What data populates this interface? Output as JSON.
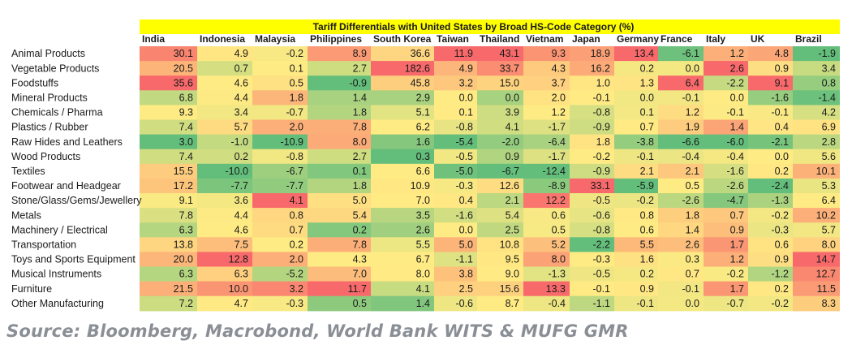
{
  "chart_data": {
    "type": "heatmap",
    "title": "Tariff Differentials with United States by Broad HS-Code Category (%)",
    "columns": [
      "India",
      "Indonesia",
      "Malaysia",
      "Philippines",
      "South Korea",
      "Taiwan",
      "Thailand",
      "Vietnam",
      "Japan",
      "Germany",
      "France",
      "Italy",
      "UK",
      "Brazil"
    ],
    "rows": [
      {
        "label": "Animal Products",
        "values": [
          30.1,
          4.9,
          -0.2,
          8.9,
          36.6,
          11.9,
          43.1,
          9.3,
          18.9,
          13.4,
          -6.1,
          1.2,
          4.8,
          -1.9
        ]
      },
      {
        "label": "Vegetable Products",
        "values": [
          20.5,
          0.7,
          0.1,
          2.7,
          182.6,
          4.9,
          33.7,
          4.3,
          16.2,
          0.2,
          0.0,
          2.6,
          0.9,
          3.4
        ]
      },
      {
        "label": "Foodstuffs",
        "values": [
          35.6,
          4.6,
          0.5,
          -0.9,
          45.8,
          3.2,
          15.0,
          3.7,
          1.0,
          1.3,
          6.4,
          -2.2,
          9.1,
          0.8
        ]
      },
      {
        "label": "Mineral Products",
        "values": [
          6.8,
          4.4,
          1.8,
          1.4,
          2.9,
          0.0,
          0.0,
          2.0,
          -0.1,
          0.0,
          -0.1,
          0.0,
          -1.6,
          -1.4
        ]
      },
      {
        "label": "Chemicals / Pharma",
        "values": [
          9.3,
          3.4,
          -0.7,
          1.8,
          5.1,
          0.1,
          3.9,
          1.2,
          -0.8,
          0.1,
          1.2,
          -0.1,
          -0.1,
          4.2
        ]
      },
      {
        "label": "Plastics / Rubber",
        "values": [
          7.4,
          5.7,
          2.0,
          7.8,
          6.2,
          -0.8,
          4.1,
          -1.7,
          -0.9,
          0.7,
          1.9,
          1.4,
          0.4,
          6.9
        ]
      },
      {
        "label": "Raw Hides and Leathers",
        "values": [
          3.0,
          -1.0,
          -10.9,
          8.0,
          1.6,
          -5.4,
          -2.0,
          -6.4,
          1.8,
          -3.8,
          -6.6,
          -6.0,
          -2.1,
          2.8
        ]
      },
      {
        "label": "Wood Products",
        "values": [
          7.4,
          0.2,
          -0.8,
          2.7,
          0.3,
          -0.5,
          0.9,
          -1.7,
          -0.2,
          -0.1,
          -0.4,
          -0.4,
          0.0,
          5.6
        ]
      },
      {
        "label": "Textiles",
        "values": [
          15.5,
          -10.0,
          -6.7,
          0.1,
          6.6,
          -5.0,
          -6.7,
          -12.4,
          -0.9,
          2.1,
          2.1,
          -1.6,
          0.2,
          10.1
        ]
      },
      {
        "label": "Footwear and Headgear",
        "values": [
          17.2,
          -7.7,
          -7.7,
          1.8,
          10.9,
          -0.3,
          12.6,
          -8.9,
          33.1,
          -5.9,
          0.5,
          -2.6,
          -2.4,
          5.3
        ]
      },
      {
        "label": "Stone/Glass/Gems/Jewellery",
        "values": [
          9.1,
          3.6,
          4.1,
          5.0,
          7.0,
          0.4,
          2.1,
          12.2,
          -0.5,
          -0.2,
          -2.6,
          -4.7,
          -1.3,
          6.4
        ]
      },
      {
        "label": "Metals",
        "values": [
          7.8,
          4.4,
          0.8,
          5.4,
          3.5,
          -1.6,
          5.4,
          0.6,
          -0.6,
          0.8,
          1.8,
          0.7,
          -0.2,
          10.2
        ]
      },
      {
        "label": "Machinery / Electrical",
        "values": [
          6.3,
          4.6,
          0.7,
          0.2,
          2.6,
          0.0,
          2.5,
          0.5,
          -0.8,
          0.6,
          1.4,
          0.9,
          -0.3,
          5.7
        ]
      },
      {
        "label": "Transportation",
        "values": [
          13.8,
          7.5,
          0.2,
          7.8,
          5.5,
          5.0,
          10.8,
          5.2,
          -2.2,
          5.5,
          2.6,
          1.7,
          0.6,
          8.0
        ]
      },
      {
        "label": "Toys and Sports Equipment",
        "values": [
          20.0,
          12.8,
          2.0,
          4.3,
          6.7,
          -1.1,
          9.5,
          8.0,
          -0.3,
          1.6,
          0.3,
          1.2,
          0.9,
          14.7
        ]
      },
      {
        "label": "Musical Instruments",
        "values": [
          6.3,
          6.3,
          -5.2,
          7.0,
          8.0,
          3.8,
          9.0,
          -1.3,
          -0.5,
          0.2,
          0.7,
          -0.2,
          -1.2,
          12.7
        ]
      },
      {
        "label": "Furniture",
        "values": [
          21.5,
          10.0,
          3.2,
          11.7,
          4.1,
          2.5,
          15.6,
          13.3,
          -0.1,
          0.9,
          -0.1,
          1.7,
          0.2,
          11.5
        ]
      },
      {
        "label": "Other Manufacturing",
        "values": [
          7.2,
          4.7,
          -0.3,
          0.5,
          1.4,
          -0.6,
          8.7,
          -0.4,
          -1.1,
          -0.1,
          0.0,
          -0.7,
          -0.2,
          8.3
        ]
      }
    ],
    "color_scale": {
      "low": "#63be7b",
      "mid": "#ffeb84",
      "high": "#f8696b",
      "title_band": "#ffff00"
    }
  },
  "source": "Source: Bloomberg, Macrobond, World Bank WITS & MUFG GMR"
}
